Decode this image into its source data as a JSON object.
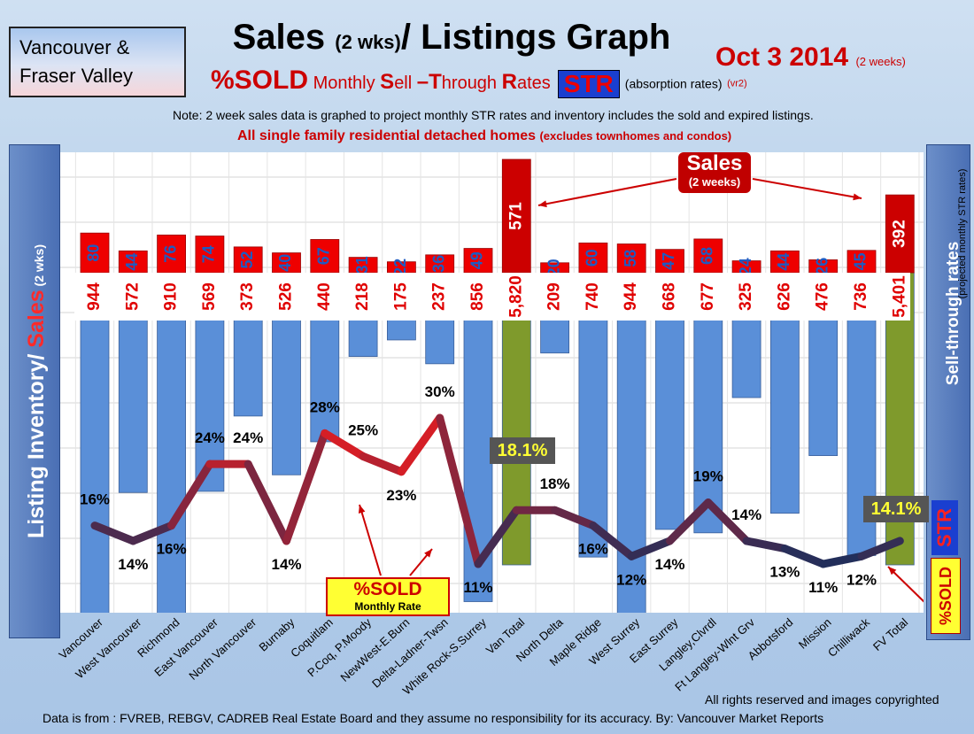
{
  "header": {
    "region_line1": "Vancouver &",
    "region_line2": "Fraser Valley",
    "title_main": "Sales ",
    "title_small": "(2 wks)",
    "title_end": "/ Listings Graph",
    "date": "Oct 3 2014",
    "date_small": "(2 weeks)",
    "subtitle_pct": "%SOLD",
    "subtitle_m": " Monthly ",
    "subtitle_S": "S",
    "subtitle_ell": "ell ",
    "subtitle_T": "–T",
    "subtitle_hrough": "hrough ",
    "subtitle_R": "R",
    "subtitle_ates": "ates",
    "str_badge": "STR",
    "absorption": "(absorption rates)",
    "vr2": "(vr2)",
    "note": "Note: 2 week sales data is graphed to project monthly STR rates and inventory includes the sold and expired listings.",
    "scope": "All single family residential detached homes ",
    "scope_small": "(excludes townhomes and condos)"
  },
  "left_axis": {
    "label_a": "Listing Inventory",
    "label_b": "/ ",
    "label_c": "Sales",
    "label_d": " (2 wks)"
  },
  "right_axis": {
    "label": "Sell-through rates",
    "label_small": "(projected monthly STR rates)",
    "str": "STR",
    "sold": "%SOLD"
  },
  "callouts": {
    "sales_l1": "Sales",
    "sales_l2": "(2 weeks)",
    "sold_l1": "%SOLD",
    "sold_l2": "Monthly Rate",
    "van_total_pct": "18.1%",
    "fv_total_pct": "14.1%"
  },
  "footer": {
    "rights": "All rights reserved and  images copyrighted",
    "source": "Data is from : FVREB, REBGV, CADREB Real Estate Board and they assume no responsibility for its accuracy.  By: Vancouver Market Reports"
  },
  "colors": {
    "sales": "#ee0000",
    "inventory": "#5a8fd8",
    "total": "#7f9a2c",
    "line_high": "#ff1a1a",
    "line_low": "#1c2f5c"
  },
  "chart_data": {
    "type": "bar",
    "categories": [
      "Vancouver",
      "West Vancouver",
      "Richmond",
      "East Vancouver",
      "North Vancouver",
      "Burnaby",
      "Coquitlam",
      "P.Coq, P.Moody",
      "NewWest-E.Burn",
      "Delta-Ladner-Twsn",
      "White Rock-S.Surrey",
      "Van Total",
      "North Delta",
      "Maple Ridge",
      "West Surrey",
      "East Surrey",
      "Langley,Clvrdl",
      "Ft Langley-Wlnt Grv",
      "Abbotsford",
      "Mission",
      "Chilliwack",
      "FV Total"
    ],
    "series": [
      {
        "name": "Sales",
        "values": [
          80,
          44,
          76,
          74,
          52,
          40,
          67,
          31,
          22,
          36,
          49,
          571,
          20,
          60,
          58,
          47,
          68,
          24,
          44,
          26,
          45,
          392
        ]
      },
      {
        "name": "Listing Inventory",
        "values": [
          944,
          572,
          910,
          569,
          373,
          526,
          440,
          218,
          175,
          237,
          856,
          5820,
          209,
          740,
          944,
          668,
          677,
          325,
          626,
          476,
          736,
          5401
        ]
      },
      {
        "name": "%SOLD",
        "values": [
          16,
          14,
          16,
          24,
          24,
          14,
          28,
          25,
          23,
          30,
          11,
          18,
          18,
          16,
          12,
          14,
          19,
          14,
          13,
          11,
          12,
          14
        ]
      }
    ],
    "labels": {
      "inventory": [
        "944",
        "572",
        "910",
        "569",
        "373",
        "526",
        "440",
        "218",
        "175",
        "237",
        "856",
        "5,820",
        "209",
        "740",
        "944",
        "668",
        "677",
        "325",
        "626",
        "476",
        "736",
        "5,401"
      ],
      "pct": [
        "16%",
        "14%",
        "16%",
        "24%",
        "24%",
        "14%",
        "28%",
        "25%",
        "23%",
        "30%",
        "11%",
        "18.1%",
        "18%",
        "16%",
        "12%",
        "14%",
        "19%",
        "14%",
        "13%",
        "11%",
        "12%",
        "14.1%"
      ]
    },
    "totals": [
      "Van Total",
      "FV Total"
    ]
  }
}
